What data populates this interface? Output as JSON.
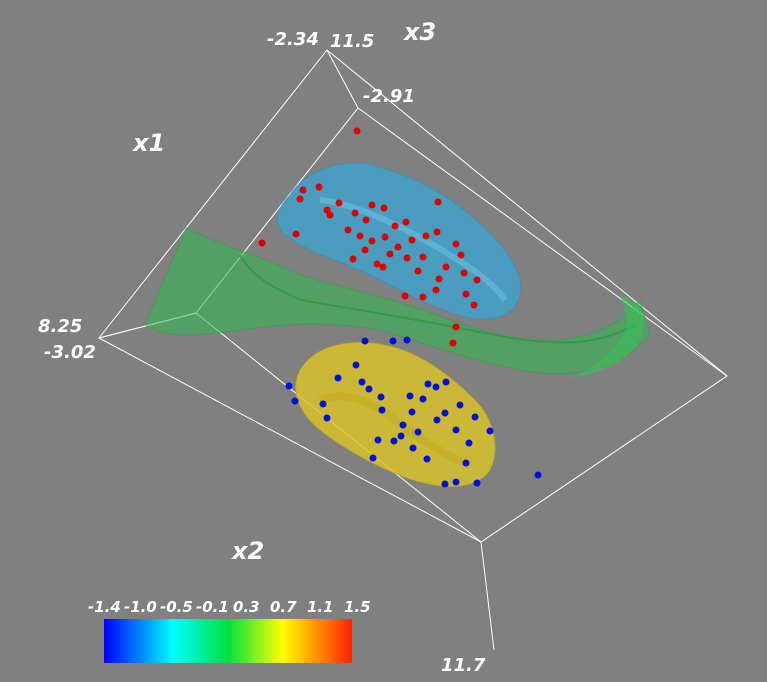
{
  "chart_data": {
    "type": "scatter",
    "dimensions": "3d",
    "axis_labels": {
      "x1": "x1",
      "x2": "x2",
      "x3": "x3"
    },
    "tick_labels": {
      "top_left": "-2.34",
      "top_right": "11.5",
      "upper": "-2.91",
      "left_upper": "8.25",
      "left_lower": "-3.02",
      "bottom": "11.7"
    },
    "colorbar": {
      "ticks": [
        "-1.4",
        "-1.0",
        "-0.5",
        "-0.1",
        "0.3",
        "0.7",
        "1.1",
        "1.5"
      ],
      "colors": [
        "#0000ff",
        "#00ffff",
        "#00e040",
        "#ffff00",
        "#ff2000"
      ]
    },
    "surfaces": [
      {
        "name": "upper-blob",
        "color": "#3aa7d6"
      },
      {
        "name": "middle-sheet",
        "color": "#3cc452"
      },
      {
        "name": "lower-blob",
        "color": "#d9c22a"
      }
    ],
    "points": {
      "red": {
        "color": "#e00000"
      },
      "blue": {
        "color": "#0010e0"
      }
    },
    "grid": false,
    "legend": "colorbar bottom-left"
  }
}
